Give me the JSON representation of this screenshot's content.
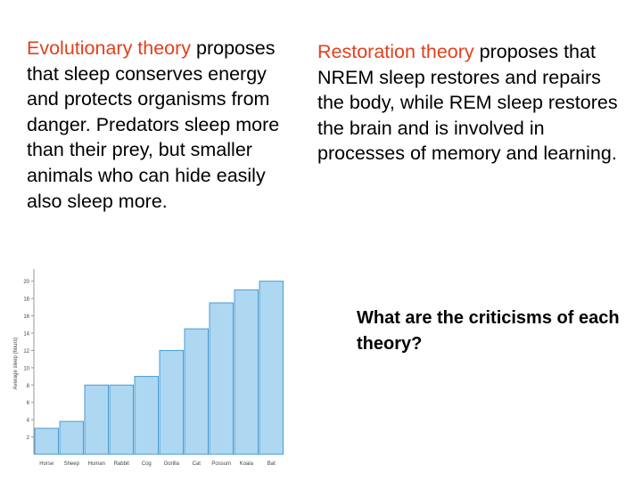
{
  "colors": {
    "accent": "#e2401e",
    "bar_fill": "#aed7f1",
    "bar_stroke": "#4a9bd4"
  },
  "left_panel": {
    "highlight": "Evolutionary theory",
    "body": " proposes that sleep conserves energy and protects organisms from danger. Predators sleep more than their prey, but smaller animals who can hide easily also sleep more."
  },
  "right_panel": {
    "highlight": "Restoration theory",
    "body": " proposes that NREM sleep restores and repairs the body, while REM sleep restores the brain and is involved in processes of memory and learning."
  },
  "question": "What are the criticisms of each theory?",
  "chart_data": {
    "type": "bar",
    "title": "",
    "xlabel": "",
    "ylabel": "Average sleep (hours)",
    "categories": [
      "Horse",
      "Sheep",
      "Human",
      "Rabbit",
      "Cog",
      "Gorilla",
      "Cat",
      "Possum",
      "Koala",
      "Bat"
    ],
    "values": [
      3,
      3.8,
      8,
      8,
      9,
      12,
      14.5,
      17.5,
      19,
      20
    ],
    "ylim": [
      0,
      21
    ],
    "yticks": [
      2,
      4,
      6,
      8,
      10,
      12,
      14,
      16,
      18,
      20
    ],
    "grid": false
  }
}
